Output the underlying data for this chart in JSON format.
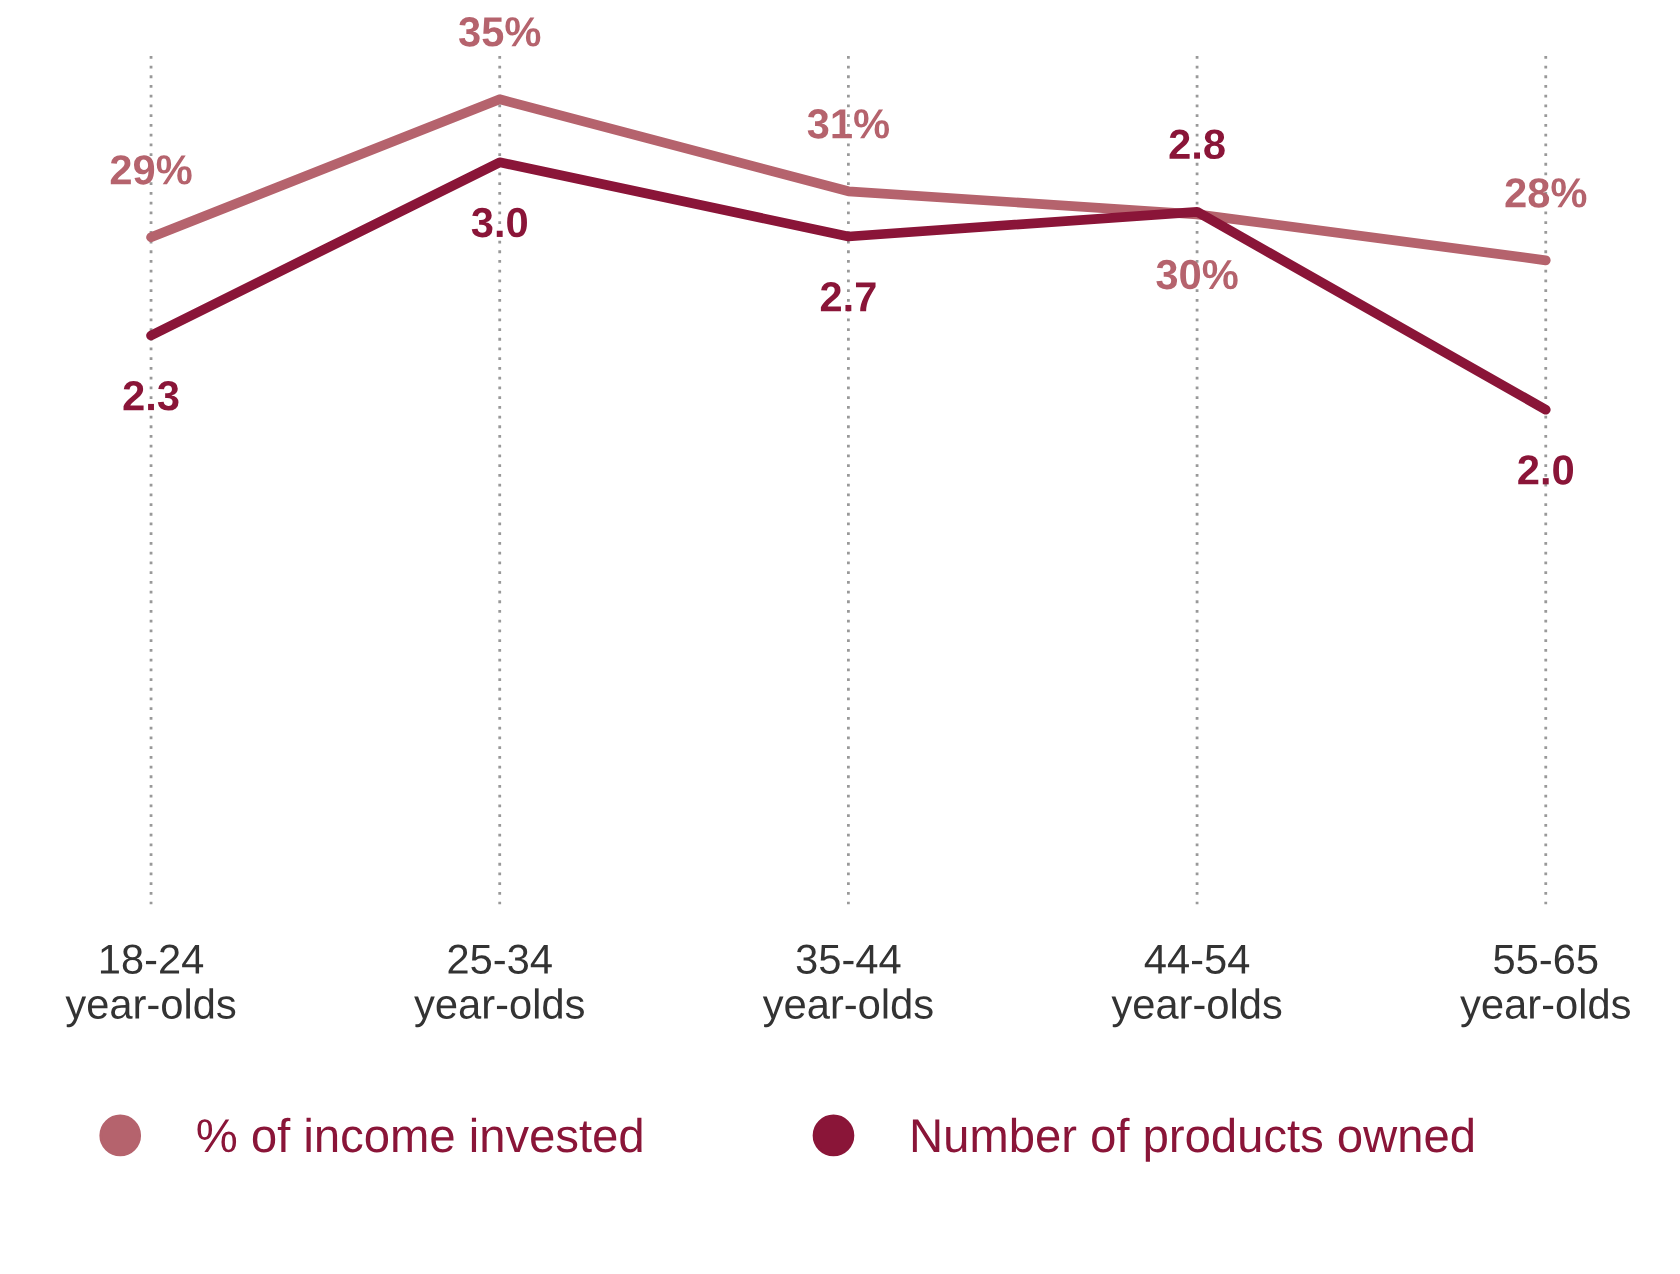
{
  "chart_data": {
    "type": "line",
    "categories": [
      "18-24\nyear-olds",
      "25-34\nyear-olds",
      "35-44\nyear-olds",
      "44-54\nyear-olds",
      "55-65\nyear-olds"
    ],
    "series": [
      {
        "name": "% of income invested",
        "color": "#b5636d",
        "values": [
          29,
          35,
          31,
          30,
          28
        ],
        "value_labels": [
          "29%",
          "35%",
          "31%",
          "30%",
          "28%"
        ]
      },
      {
        "name": "Number of products owned",
        "color": "#8a1538",
        "values": [
          2.3,
          3.0,
          2.7,
          2.8,
          2.0
        ],
        "value_labels": [
          "2.3",
          "3.0",
          "2.7",
          "2.8",
          "2.0"
        ],
        "axis": "y2"
      }
    ],
    "grid": "x",
    "legend": "bottom",
    "tick_labels": "x",
    "marker": "none",
    "line_style": "solid"
  }
}
